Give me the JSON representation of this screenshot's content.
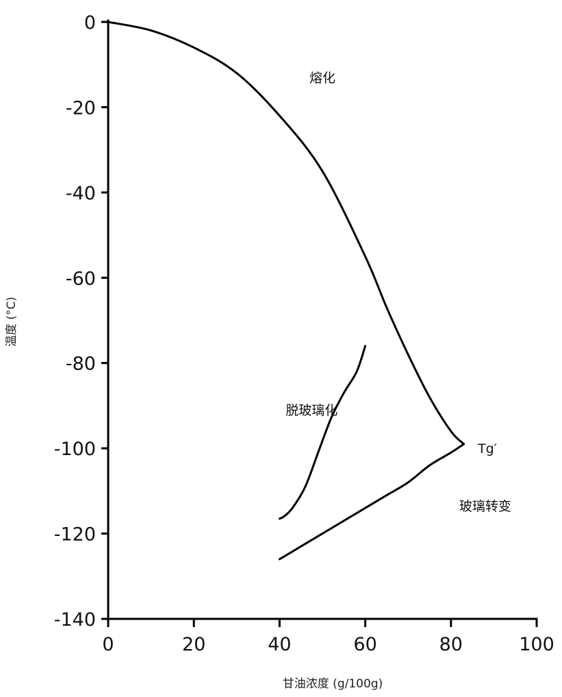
{
  "chart_data": {
    "type": "line",
    "xlabel": "甘油浓度 (g/100g)",
    "ylabel": "温度 (°C)",
    "xlim": [
      0,
      100
    ],
    "ylim": [
      -140,
      0
    ],
    "x_ticks": [
      "0",
      "20",
      "40",
      "60",
      "80",
      "100"
    ],
    "y_ticks": [
      "0",
      "-20",
      "-40",
      "-60",
      "-80",
      "-100",
      "-120",
      "-140"
    ],
    "grid": false,
    "legend": "none",
    "line_color": "#000000",
    "series": [
      {
        "name": "熔化",
        "x": [
          0,
          10,
          20,
          30,
          40,
          50,
          60,
          65,
          70,
          75,
          80,
          83
        ],
        "y": [
          0,
          -2,
          -6,
          -12,
          -22,
          -35,
          -55,
          -67,
          -78,
          -88,
          -96,
          -99
        ]
      },
      {
        "name": "脱玻璃化",
        "x": [
          40,
          41,
          43,
          46,
          49,
          52,
          55,
          58,
          60
        ],
        "y": [
          -116.5,
          -116,
          -114,
          -109,
          -101,
          -93,
          -87,
          -82,
          -76
        ]
      },
      {
        "name": "玻璃转变",
        "x": [
          40,
          45,
          50,
          55,
          60,
          65,
          70,
          75,
          80,
          83
        ],
        "y": [
          -126,
          -123,
          -120,
          -117,
          -114,
          -111,
          -108,
          -104,
          -101,
          -99
        ]
      }
    ],
    "annotations": [
      {
        "text": "熔化",
        "x": 50,
        "y": -13
      },
      {
        "text": "脱玻璃化",
        "x": 47.5,
        "y": -91
      },
      {
        "text": "Tg′",
        "x": 88.5,
        "y": -100
      },
      {
        "text": "玻璃转变",
        "x": 88,
        "y": -113.5
      }
    ]
  }
}
